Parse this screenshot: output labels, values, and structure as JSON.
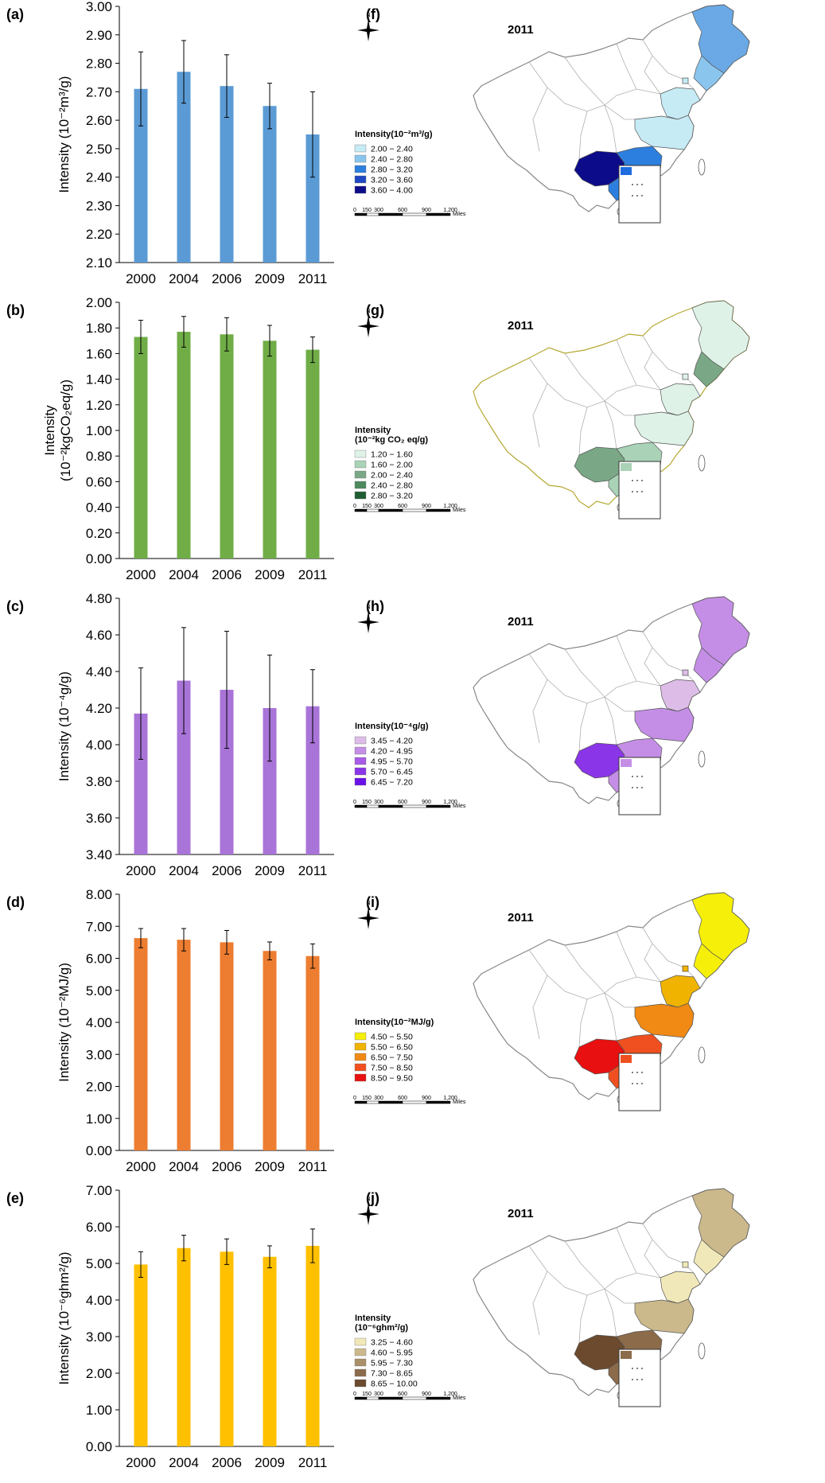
{
  "chart_data": [
    {
      "type": "bar",
      "panel": "(a)",
      "categories": [
        "2000",
        "2004",
        "2006",
        "2009",
        "2011"
      ],
      "values": [
        2.71,
        2.77,
        2.72,
        2.65,
        2.55
      ],
      "errors": [
        0.13,
        0.11,
        0.11,
        0.08,
        0.15
      ],
      "ylabel": "Intensity (10⁻²m³/g)",
      "ylim": [
        2.1,
        3.0
      ],
      "yticks": [
        "2.10",
        "2.20",
        "2.30",
        "2.40",
        "2.50",
        "2.60",
        "2.70",
        "2.80",
        "2.90",
        "3.00"
      ],
      "color": "#5b9bd5"
    },
    {
      "type": "bar",
      "panel": "(b)",
      "categories": [
        "2000",
        "2004",
        "2006",
        "2009",
        "2011"
      ],
      "values": [
        1.73,
        1.77,
        1.75,
        1.7,
        1.63
      ],
      "errors": [
        0.13,
        0.12,
        0.13,
        0.12,
        0.1
      ],
      "ylabel": "Intensity",
      "ylabel2": "(10⁻²kgCO₂eq/g)",
      "ylim": [
        0.0,
        2.0
      ],
      "yticks": [
        "0.00",
        "0.20",
        "0.40",
        "0.60",
        "0.80",
        "1.00",
        "1.20",
        "1.40",
        "1.60",
        "1.80",
        "2.00"
      ],
      "color": "#70ad47"
    },
    {
      "type": "bar",
      "panel": "(c)",
      "categories": [
        "2000",
        "2004",
        "2006",
        "2009",
        "2011"
      ],
      "values": [
        4.17,
        4.35,
        4.3,
        4.2,
        4.21
      ],
      "errors": [
        0.25,
        0.29,
        0.32,
        0.29,
        0.2
      ],
      "ylabel": "Intensity (10⁻⁴g/g)",
      "ylim": [
        3.4,
        4.8
      ],
      "yticks": [
        "3.40",
        "3.60",
        "3.80",
        "4.00",
        "4.20",
        "4.40",
        "4.60",
        "4.80"
      ],
      "color": "#a974d8"
    },
    {
      "type": "bar",
      "panel": "(d)",
      "categories": [
        "2000",
        "2004",
        "2006",
        "2009",
        "2011"
      ],
      "values": [
        6.63,
        6.58,
        6.5,
        6.23,
        6.07
      ],
      "errors": [
        0.3,
        0.35,
        0.37,
        0.28,
        0.38
      ],
      "ylabel": "Intensity (10⁻²MJ/g)",
      "ylim": [
        0.0,
        8.0
      ],
      "yticks": [
        "0.00",
        "1.00",
        "2.00",
        "3.00",
        "4.00",
        "5.00",
        "6.00",
        "7.00",
        "8.00"
      ],
      "color": "#ed7d31"
    },
    {
      "type": "bar",
      "panel": "(e)",
      "categories": [
        "2000",
        "2004",
        "2006",
        "2009",
        "2011"
      ],
      "values": [
        4.97,
        5.42,
        5.32,
        5.18,
        5.48
      ],
      "errors": [
        0.35,
        0.35,
        0.35,
        0.3,
        0.46
      ],
      "ylabel": "Intensity (10⁻⁶ghm²/g)",
      "ylim": [
        0.0,
        7.0
      ],
      "yticks": [
        "0.00",
        "1.00",
        "2.00",
        "3.00",
        "4.00",
        "5.00",
        "6.00",
        "7.00"
      ],
      "color": "#ffc000"
    }
  ],
  "maps": [
    {
      "panel": "(f)",
      "year": "2011",
      "legend_title": [
        "Intensity(10⁻²m³/g)"
      ],
      "legend": [
        {
          "label": "2.00 − 2.40",
          "color": "#c6ebf5"
        },
        {
          "label": "2.40 − 2.80",
          "color": "#8ac5ee"
        },
        {
          "label": "2.80 − 3.20",
          "color": "#2c7fde"
        },
        {
          "label": "3.20 − 3.60",
          "color": "#1f48c2"
        },
        {
          "label": "3.60 − 4.00",
          "color": "#0c0c8a"
        }
      ],
      "highlight": {
        "ne": "#6aa9e5",
        "coast": "#8ac5ee",
        "north": "#c6ebf5",
        "central": "#c6ebf5",
        "southwest": "#0c0c8a",
        "south": "#2c7fde",
        "tw": "#1f6be0"
      },
      "outline": "#888888"
    },
    {
      "panel": "(g)",
      "year": "2011",
      "legend_title": [
        "Intensity",
        "(10⁻²kg CO₂ eq/g)"
      ],
      "legend": [
        {
          "label": "1.20 − 1.60",
          "color": "#dff2e8"
        },
        {
          "label": "1.60 − 2.00",
          "color": "#a9d2b6"
        },
        {
          "label": "2.00 − 2.40",
          "color": "#7aa886"
        },
        {
          "label": "2.40 − 2.80",
          "color": "#4c8a5e"
        },
        {
          "label": "2.80 − 3.20",
          "color": "#1f5e33"
        }
      ],
      "highlight": {
        "ne": "#dff2e8",
        "coast": "#7aa886",
        "north": "#dff2e8",
        "central": "#dff2e8",
        "southwest": "#7aa886",
        "south": "#a9d2b6",
        "tw": "#a9d2b6"
      },
      "outline": "#b5a832"
    },
    {
      "panel": "(h)",
      "year": "2011",
      "legend_title": [
        "Intensity(10⁻⁴g/g)"
      ],
      "legend": [
        {
          "label": "3.45 − 4.20",
          "color": "#ddbde8"
        },
        {
          "label": "4.20 − 4.95",
          "color": "#c48ee6"
        },
        {
          "label": "4.95 − 5.70",
          "color": "#a85be6"
        },
        {
          "label": "5.70 − 6.45",
          "color": "#8a35e8"
        },
        {
          "label": "6.45 − 7.20",
          "color": "#6a10e8"
        }
      ],
      "highlight": {
        "ne": "#c48ee6",
        "coast": "#c48ee6",
        "north": "#ddbde8",
        "central": "#c48ee6",
        "southwest": "#8a35e8",
        "south": "#c48ee6",
        "tw": "#c48ee6"
      },
      "outline": "#888888"
    },
    {
      "panel": "(i)",
      "year": "2011",
      "legend_title": [
        "Intensity(10⁻²MJ/g)"
      ],
      "legend": [
        {
          "label": "4.50 − 5.50",
          "color": "#f5ef0a"
        },
        {
          "label": "5.50 − 6.50",
          "color": "#f0b300"
        },
        {
          "label": "6.50 − 7.50",
          "color": "#f08a14"
        },
        {
          "label": "7.50 − 8.50",
          "color": "#f05020"
        },
        {
          "label": "8.50 − 9.50",
          "color": "#e81010"
        }
      ],
      "highlight": {
        "ne": "#f5ef0a",
        "coast": "#f5ef0a",
        "north": "#f0b300",
        "central": "#f08a14",
        "southwest": "#e81010",
        "south": "#f05020",
        "tw": "#f05020"
      },
      "outline": "#888888"
    },
    {
      "panel": "(j)",
      "year": "2011",
      "legend_title": [
        "Intensity",
        "(10⁻⁶ghm²/g)"
      ],
      "legend": [
        {
          "label": "3.25 − 4.60",
          "color": "#f0e8b8"
        },
        {
          "label": "4.60 − 5.95",
          "color": "#cbb98c"
        },
        {
          "label": "5.95 − 7.30",
          "color": "#a99068"
        },
        {
          "label": "7.30 − 8.65",
          "color": "#8c6b4a"
        },
        {
          "label": "8.65 − 10.00",
          "color": "#6b4a2e"
        }
      ],
      "highlight": {
        "ne": "#cbb98c",
        "coast": "#f0e8b8",
        "north": "#f0e8b8",
        "central": "#cbb98c",
        "southwest": "#6b4a2e",
        "south": "#8c6b4a",
        "tw": "#8c6b4a"
      },
      "outline": "#888888"
    }
  ],
  "scale_bar": {
    "ticks": [
      "0",
      "150",
      "300",
      "600",
      "900",
      "1,200"
    ],
    "unit": "Miles"
  },
  "compass": {
    "label": "N"
  }
}
